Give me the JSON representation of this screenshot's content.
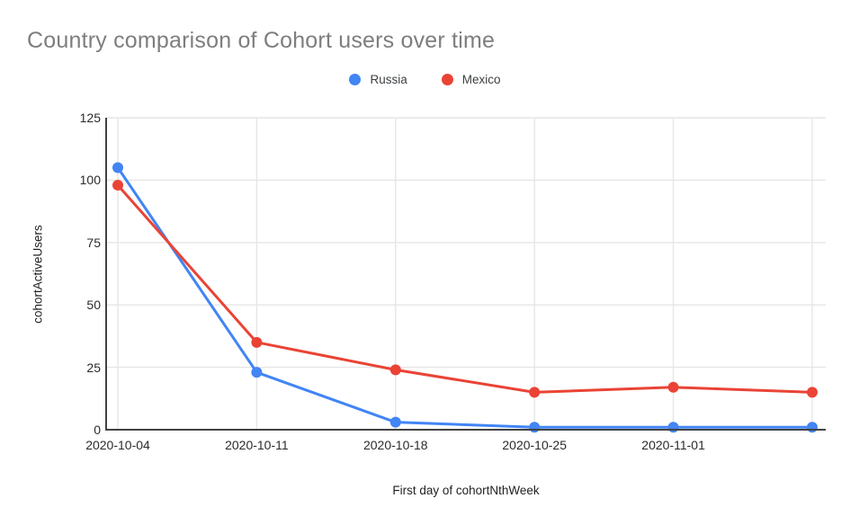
{
  "title": "Country comparison of Cohort users over time",
  "legend": {
    "items": [
      {
        "label": "Russia",
        "color": "#4285F4"
      },
      {
        "label": "Mexico",
        "color": "#EA4335"
      }
    ]
  },
  "colors": {
    "russia_blue": "#4285F4",
    "mexico_red": "#EA4335",
    "title_gray": "#7e7e7e",
    "grid_gray": "#e6e6e6",
    "axis_gray": "#424242"
  },
  "chart_data": {
    "type": "line",
    "xticklabels": [
      "2020-10-04",
      "2020-10-11",
      "2020-10-18",
      "2020-10-25",
      "2020-11-01",
      ""
    ],
    "num_points": 6,
    "series": [
      {
        "name": "Russia",
        "color": "#4285F4",
        "values": [
          105,
          23,
          3,
          1,
          1,
          1
        ]
      },
      {
        "name": "Mexico",
        "color": "#EA4335",
        "values": [
          98,
          35,
          24,
          15,
          17,
          15
        ]
      }
    ],
    "title": "Country comparison of Cohort users over time",
    "xlabel": "First day of cohortNthWeek",
    "ylabel": "cohortActiveUsers",
    "ylim": [
      0,
      125
    ],
    "yticks": [
      0,
      25,
      50,
      75,
      100,
      125
    ],
    "legend_position": "top",
    "grid": true,
    "marker": "circle"
  }
}
